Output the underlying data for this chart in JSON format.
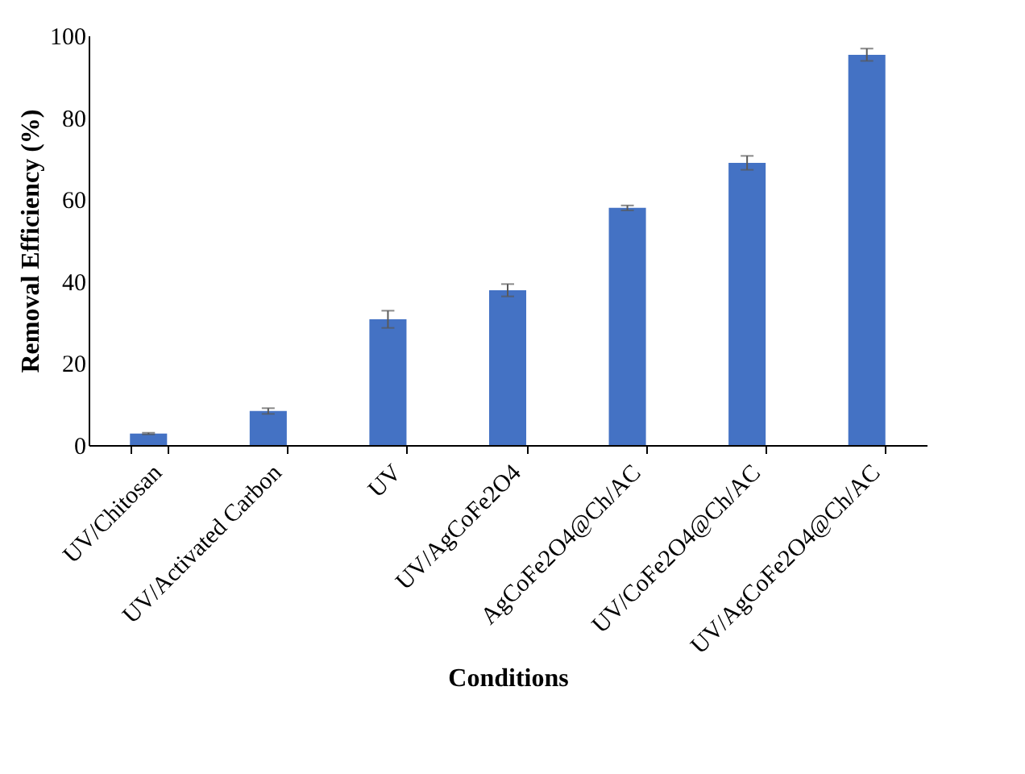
{
  "chart_data": {
    "type": "bar",
    "xlabel": "Conditions",
    "ylabel": "Removal Efficiency (%)",
    "categories": [
      "UV/Chitosan",
      "UV/Activated Carbon",
      "UV",
      "UV/AgCoFe2O4",
      "AgCoFe2O4@Ch/AC",
      "UV/CoFe2O4@Ch/AC",
      "UV/AgCoFe2O4@Ch/AC"
    ],
    "values": [
      2.8,
      8.3,
      30.7,
      37.8,
      57.9,
      68.9,
      95.3
    ],
    "errors": [
      0.2,
      0.7,
      2.1,
      1.5,
      0.6,
      1.7,
      1.5
    ],
    "color": "#4472c4",
    "ylim": [
      0,
      100
    ],
    "yticks": [
      0,
      20,
      40,
      60,
      80,
      100
    ],
    "grid": false
  }
}
